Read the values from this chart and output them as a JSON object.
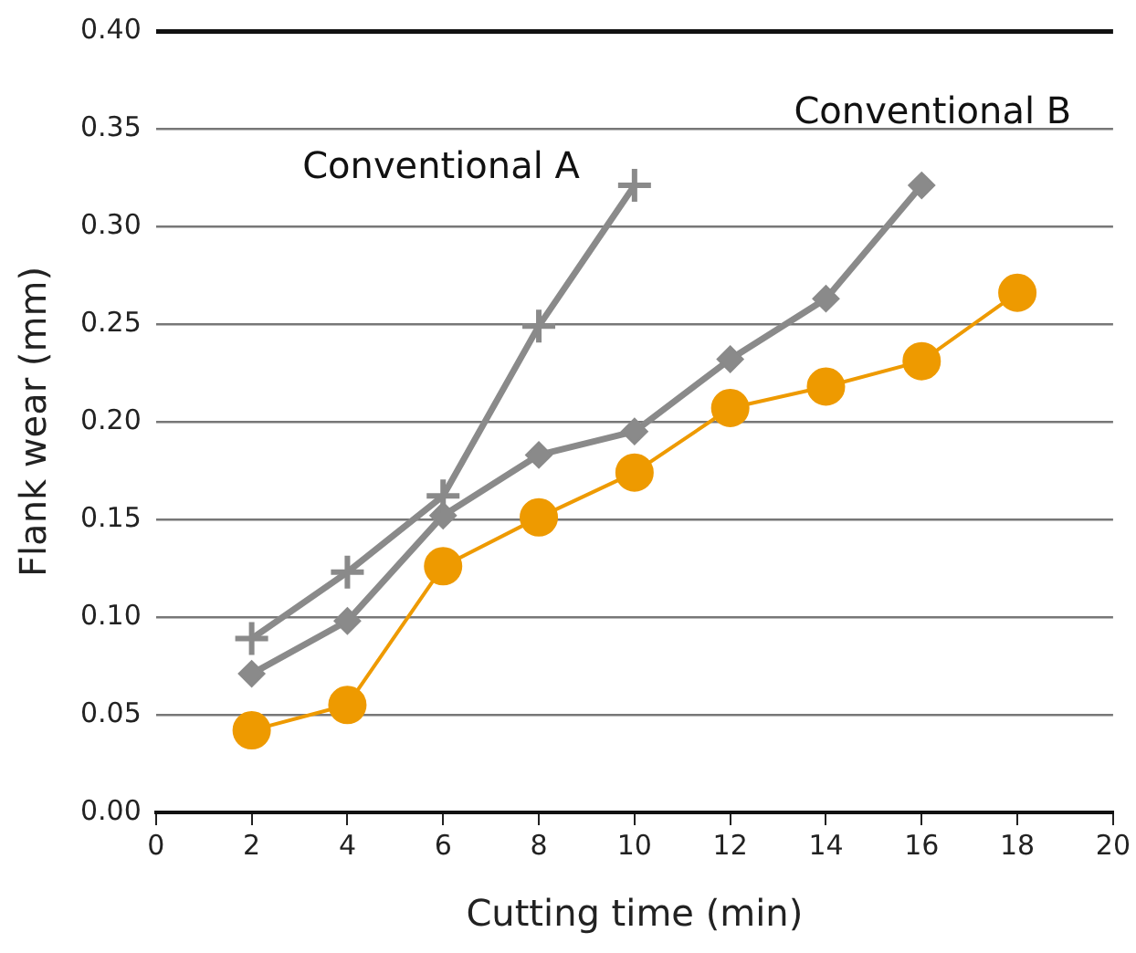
{
  "chart_data": {
    "type": "line",
    "xlabel": "Cutting time (min)",
    "ylabel": "Flank wear (mm)",
    "xlim": [
      0,
      20
    ],
    "xticks": [
      0,
      2,
      4,
      6,
      8,
      10,
      12,
      14,
      16,
      18,
      20
    ],
    "ylim": [
      0,
      0.4
    ],
    "yticks": [
      {
        "value": 0,
        "label": "0.00"
      },
      {
        "value": 0.05,
        "label": "0.05"
      },
      {
        "value": 0.1,
        "label": "0.10"
      },
      {
        "value": 0.15,
        "label": "0.15"
      },
      {
        "value": 0.2,
        "label": "0.20"
      },
      {
        "value": 0.25,
        "label": "0.25"
      },
      {
        "value": 0.3,
        "label": "0.30"
      },
      {
        "value": 0.35,
        "label": "0.35"
      },
      {
        "value": 0.4,
        "label": "0.40"
      }
    ],
    "grid": "y",
    "legend": false,
    "series": [
      {
        "name": "Conventional A",
        "color": "#8a8a8a",
        "marker": "cross",
        "x": [
          2,
          4,
          6,
          8,
          10
        ],
        "values": [
          0.089,
          0.123,
          0.162,
          0.249,
          0.321
        ]
      },
      {
        "name": "Conventional B",
        "color": "#8a8a8a",
        "marker": "diamond",
        "x": [
          2,
          4,
          6,
          8,
          10,
          12,
          14,
          16
        ],
        "values": [
          0.071,
          0.098,
          0.152,
          0.183,
          0.195,
          0.232,
          0.263,
          0.321
        ]
      },
      {
        "color": "#ee9a00",
        "marker": "circle",
        "x": [
          2,
          4,
          6,
          8,
          10,
          12,
          14,
          16,
          18
        ],
        "values": [
          0.042,
          0.055,
          0.126,
          0.151,
          0.174,
          0.207,
          0.218,
          0.231,
          0.266
        ]
      }
    ]
  }
}
